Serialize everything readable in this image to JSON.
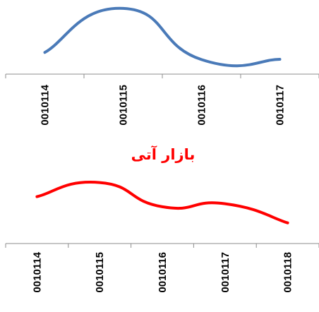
{
  "chart_data": [
    {
      "type": "line",
      "title": "",
      "xlabel": "",
      "ylabel": "",
      "categories": [
        "0010114",
        "0010115",
        "0010116",
        "0010117"
      ],
      "series": [
        {
          "color": "#4a7ab8",
          "values": [
            19,
            100,
            6,
            6.5
          ]
        }
      ],
      "ylim": [
        0,
        105
      ],
      "grid": false,
      "legend": "none",
      "smooth": true
    },
    {
      "type": "line",
      "title": "بازار آتی",
      "title_color": "#ff0000",
      "xlabel": "",
      "ylabel": "",
      "categories": [
        "0010114",
        "0010115",
        "0010116",
        "0010117",
        "0010118"
      ],
      "series": [
        {
          "color": "#ff0000",
          "values": [
            72,
            100,
            52,
            58,
            20
          ]
        }
      ],
      "ylim": [
        0,
        105
      ],
      "grid": false,
      "legend": "none",
      "smooth": true
    }
  ]
}
